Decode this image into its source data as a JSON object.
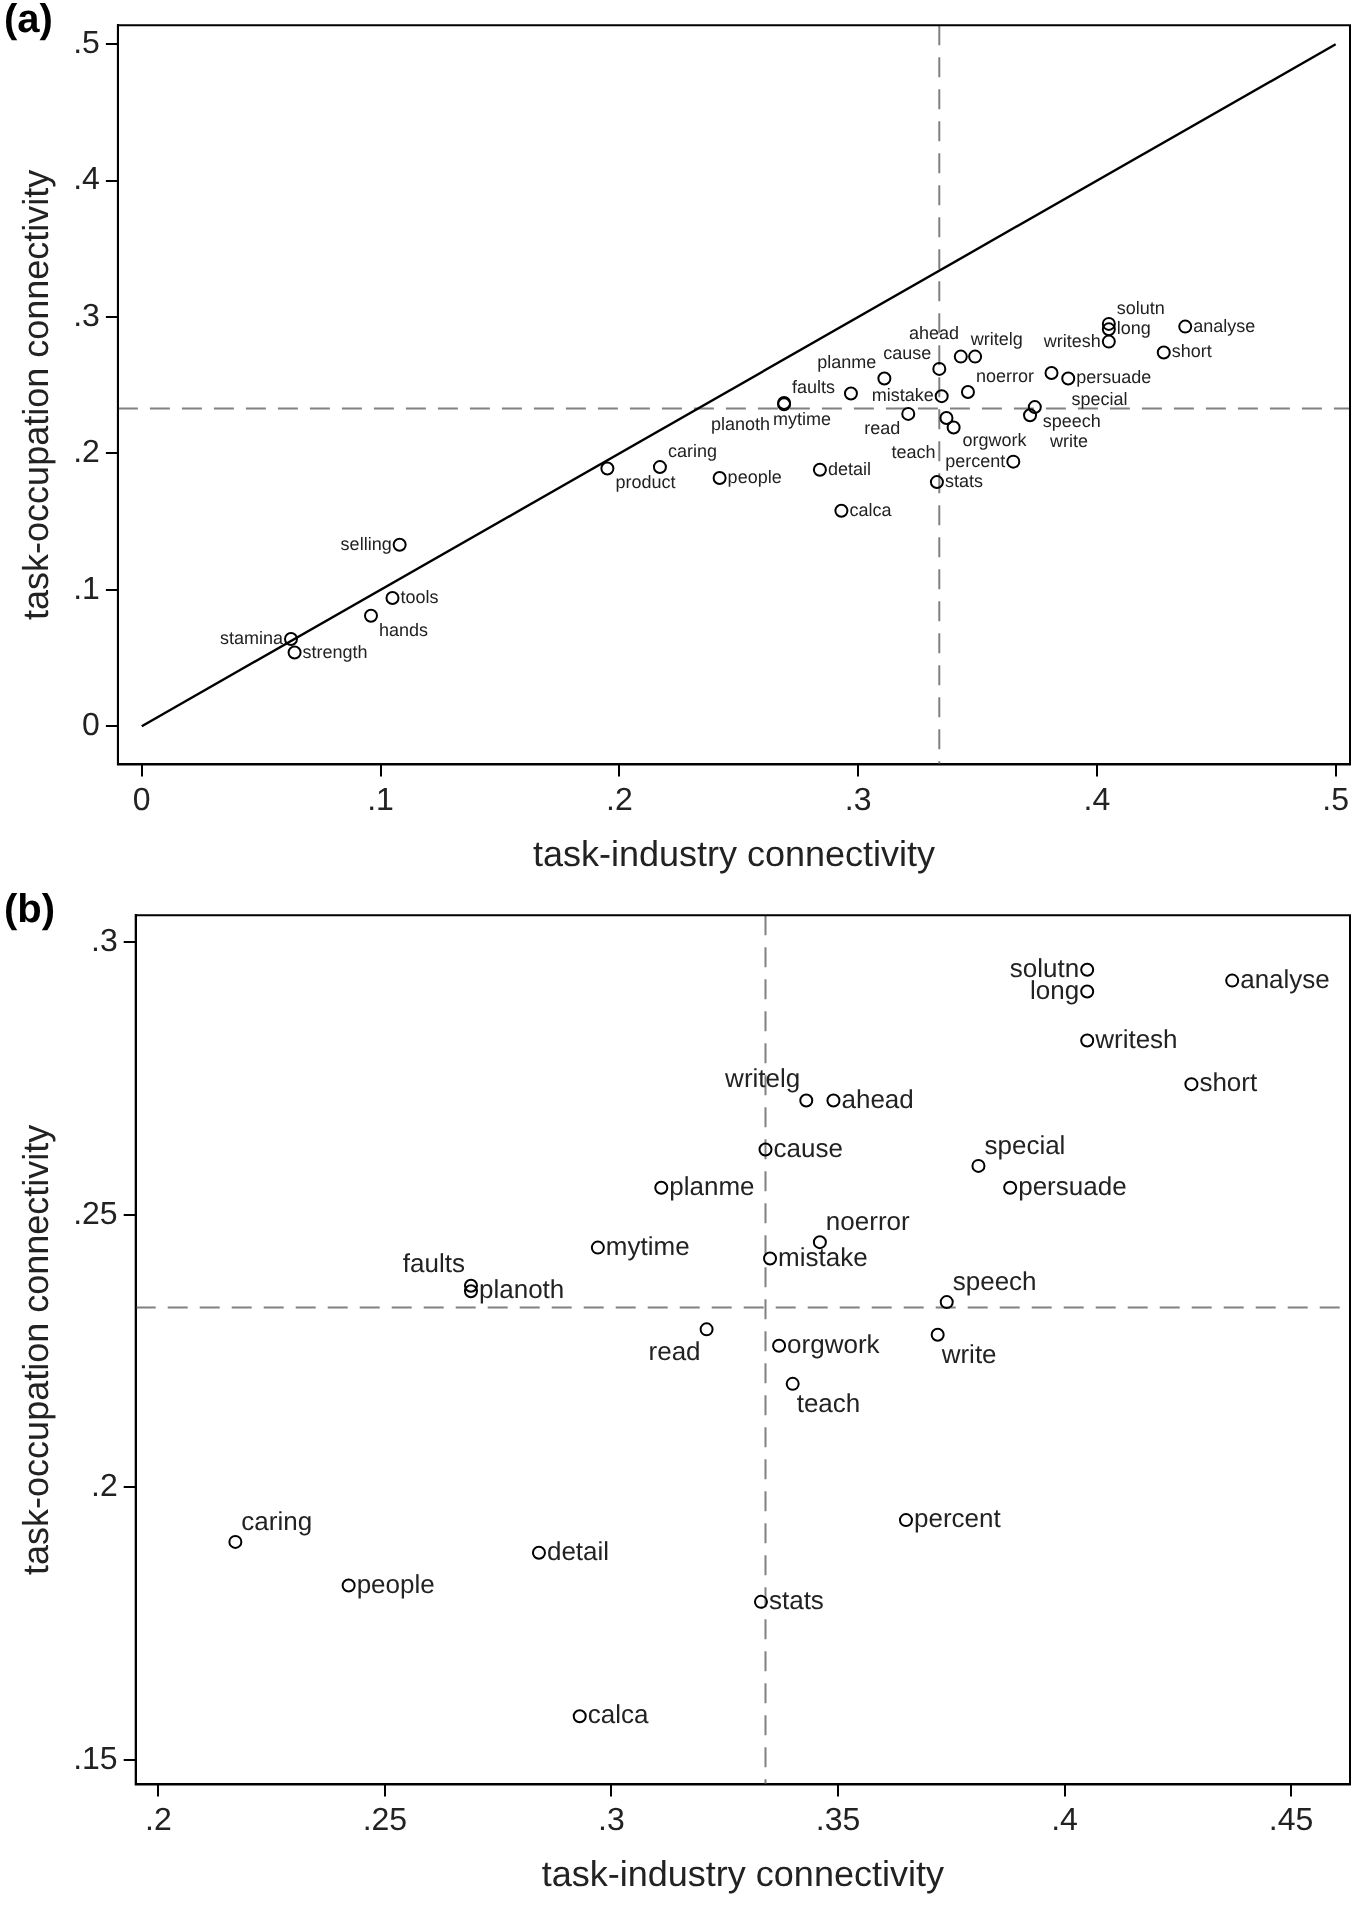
{
  "chart_data": [
    {
      "type": "scatter",
      "title": "(a)",
      "xlabel": "task-industry connectivity",
      "ylabel": "task-occupation connectivity",
      "xlim": [
        -0.01,
        0.506
      ],
      "ylim": [
        -0.028,
        0.514
      ],
      "xticks": [
        {
          "value": 0,
          "label": "0"
        },
        {
          "value": 0.1,
          "label": ".1"
        },
        {
          "value": 0.2,
          "label": ".2"
        },
        {
          "value": 0.3,
          "label": ".3"
        },
        {
          "value": 0.4,
          "label": ".4"
        },
        {
          "value": 0.5,
          "label": ".5"
        }
      ],
      "yticks": [
        {
          "value": 0,
          "label": "0"
        },
        {
          "value": 0.1,
          "label": ".1"
        },
        {
          "value": 0.2,
          "label": ".2"
        },
        {
          "value": 0.3,
          "label": ".3"
        },
        {
          "value": 0.4,
          "label": ".4"
        },
        {
          "value": 0.5,
          "label": ".5"
        }
      ],
      "ref_lines": [
        {
          "axis": "x",
          "value": 0.334,
          "color": "#808080",
          "line_style": "dashed"
        },
        {
          "axis": "y",
          "value": 0.233,
          "color": "#808080",
          "line_style": "dashed"
        }
      ],
      "series": [
        {
          "type": "scatter",
          "marker": "circle",
          "color": "#000000",
          "x": [
            0.405,
            0.405,
            0.437,
            0.405,
            0.428,
            0.343,
            0.349,
            0.334,
            0.381,
            0.388,
            0.311,
            0.346,
            0.297,
            0.335,
            0.269,
            0.269,
            0.374,
            0.321,
            0.337,
            0.372,
            0.34,
            0.217,
            0.284,
            0.242,
            0.365,
            0.333,
            0.293,
            0.108,
            0.105,
            0.096,
            0.0625,
            0.064,
            0.195
          ],
          "values": [
            0.295,
            0.291,
            0.293,
            0.282,
            0.274,
            0.271,
            0.271,
            0.262,
            0.259,
            0.255,
            0.255,
            0.245,
            0.244,
            0.242,
            0.237,
            0.236,
            0.234,
            0.229,
            0.226,
            0.228,
            0.219,
            0.19,
            0.188,
            0.182,
            0.194,
            0.179,
            0.158,
            0.133,
            0.094,
            0.081,
            0.064,
            0.054,
            0.189
          ],
          "value_labels": [
            "solutn",
            "long",
            "analyse",
            "writesh",
            "short",
            "writelg",
            "ahead",
            "cause",
            "special",
            "persuade",
            "planme",
            "noerror",
            "mytime",
            "mistake",
            "faults",
            "planoth",
            "speech",
            "read",
            "orgwork",
            "write",
            "teach",
            "caring",
            "detail",
            "people",
            "percent",
            "stats",
            "calca",
            "selling",
            "tools",
            "hands",
            "stamina",
            "strength",
            "product"
          ]
        },
        {
          "type": "line",
          "marker": "none",
          "line_style": "solid",
          "color": "#000000",
          "x": [
            0,
            0.5
          ],
          "values": [
            0,
            0.5
          ]
        }
      ]
    },
    {
      "type": "scatter",
      "title": "(b)",
      "xlabel": "task-industry connectivity",
      "ylabel": "task-occupation connectivity",
      "xlim": [
        0.195,
        0.463
      ],
      "ylim": [
        0.1455,
        0.305
      ],
      "xticks": [
        {
          "value": 0.2,
          "label": ".2"
        },
        {
          "value": 0.25,
          "label": ".25"
        },
        {
          "value": 0.3,
          "label": ".3"
        },
        {
          "value": 0.35,
          "label": ".35"
        },
        {
          "value": 0.4,
          "label": ".4"
        },
        {
          "value": 0.45,
          "label": ".45"
        }
      ],
      "yticks": [
        {
          "value": 0.15,
          "label": ".15"
        },
        {
          "value": 0.2,
          "label": ".2"
        },
        {
          "value": 0.25,
          "label": ".25"
        },
        {
          "value": 0.3,
          "label": ".3"
        }
      ],
      "ref_lines": [
        {
          "axis": "x",
          "value": 0.334,
          "color": "#808080",
          "line_style": "dashed"
        },
        {
          "axis": "y",
          "value": 0.233,
          "color": "#808080",
          "line_style": "dashed"
        }
      ],
      "series": [
        {
          "type": "scatter",
          "marker": "circle",
          "color": "#000000",
          "x": [
            0.405,
            0.405,
            0.437,
            0.405,
            0.428,
            0.343,
            0.349,
            0.334,
            0.381,
            0.388,
            0.311,
            0.346,
            0.297,
            0.335,
            0.269,
            0.269,
            0.374,
            0.321,
            0.337,
            0.372,
            0.34,
            0.217,
            0.284,
            0.242,
            0.365,
            0.333,
            0.293
          ],
          "values": [
            0.295,
            0.291,
            0.293,
            0.282,
            0.274,
            0.271,
            0.271,
            0.262,
            0.259,
            0.255,
            0.255,
            0.245,
            0.244,
            0.242,
            0.237,
            0.236,
            0.234,
            0.229,
            0.226,
            0.228,
            0.219,
            0.19,
            0.188,
            0.182,
            0.194,
            0.179,
            0.158
          ],
          "value_labels": [
            "solutn",
            "long",
            "analyse",
            "writesh",
            "short",
            "writelg",
            "ahead",
            "cause",
            "special",
            "persuade",
            "planme",
            "noerror",
            "mytime",
            "mistake",
            "faults",
            "planoth",
            "speech",
            "read",
            "orgwork",
            "write",
            "teach",
            "caring",
            "detail",
            "people",
            "percent",
            "stats",
            "calca"
          ]
        }
      ]
    }
  ]
}
